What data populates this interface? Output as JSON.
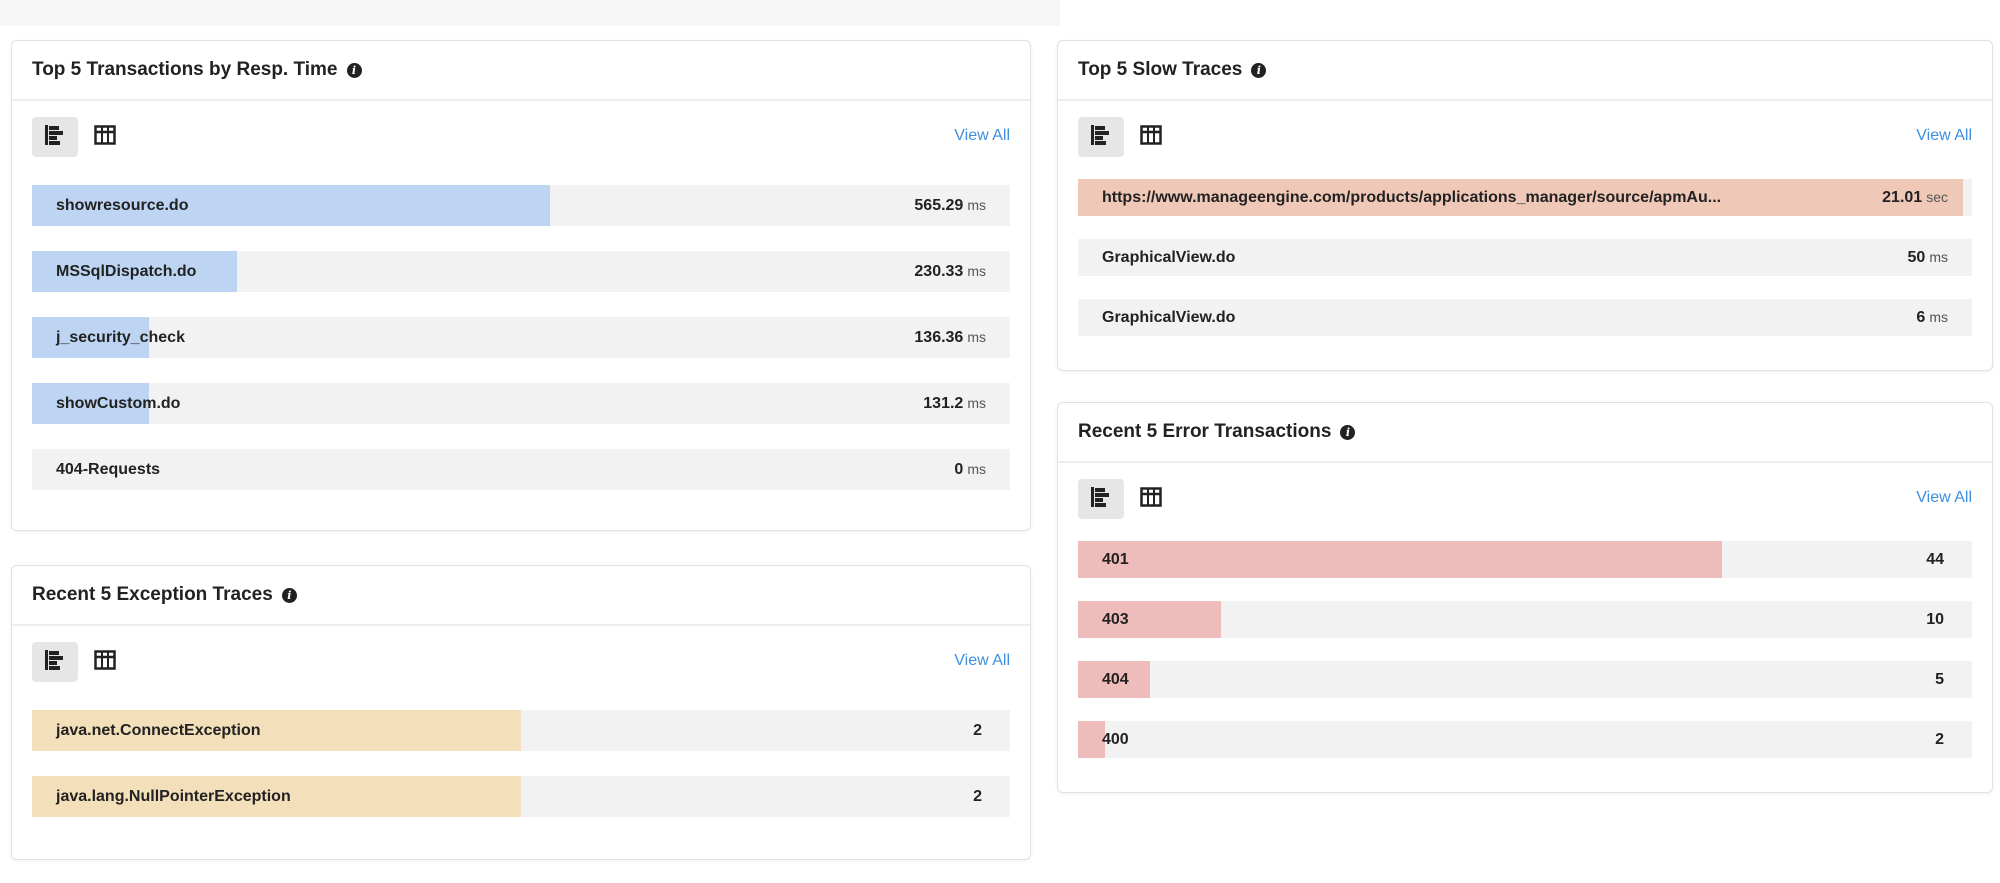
{
  "colors": {
    "track": "#f2f2f2",
    "transactions": "#bdd5f3",
    "exceptions": "#f3dfb9",
    "slow_traces": "#f0c8b8",
    "errors": "#efbcbc",
    "link": "#3d8fe0"
  },
  "panels": {
    "transactions": {
      "title": "Top 5 Transactions by Resp. Time",
      "view_all": "View All",
      "view_modes": [
        "bar-chart-icon",
        "table-icon"
      ],
      "active_view": "bar-chart-icon",
      "items": [
        {
          "label": "showresource.do",
          "value": "565.29",
          "unit": "ms",
          "fill": 0.53
        },
        {
          "label": "MSSqlDispatch.do",
          "value": "230.33",
          "unit": "ms",
          "fill": 0.21
        },
        {
          "label": "j_security_check",
          "value": "136.36",
          "unit": "ms",
          "fill": 0.12
        },
        {
          "label": "showCustom.do",
          "value": "131.2",
          "unit": "ms",
          "fill": 0.12
        },
        {
          "label": "404-Requests",
          "value": "0",
          "unit": "ms",
          "fill": 0
        }
      ]
    },
    "exceptions": {
      "title": "Recent 5 Exception Traces",
      "view_all": "View All",
      "items": [
        {
          "label": "java.net.ConnectException",
          "value": "2",
          "unit": "",
          "fill": 0.5
        },
        {
          "label": "java.lang.NullPointerException",
          "value": "2",
          "unit": "",
          "fill": 0.5
        }
      ]
    },
    "slow_traces": {
      "title": "Top 5 Slow Traces",
      "view_all": "View All",
      "items": [
        {
          "label": "https://www.manageengine.com/products/applications_manager/source/apmAu...",
          "value": "21.01",
          "unit": "sec",
          "fill": 0.99
        },
        {
          "label": "GraphicalView.do",
          "value": "50",
          "unit": "ms",
          "fill": 0
        },
        {
          "label": "GraphicalView.do",
          "value": "6",
          "unit": "ms",
          "fill": 0
        }
      ]
    },
    "errors": {
      "title": "Recent 5 Error Transactions",
      "view_all": "View All",
      "items": [
        {
          "label": "401",
          "value": "44",
          "unit": "",
          "fill": 0.72
        },
        {
          "label": "403",
          "value": "10",
          "unit": "",
          "fill": 0.16
        },
        {
          "label": "404",
          "value": "5",
          "unit": "",
          "fill": 0.08
        },
        {
          "label": "400",
          "value": "2",
          "unit": "",
          "fill": 0.03
        }
      ]
    }
  }
}
